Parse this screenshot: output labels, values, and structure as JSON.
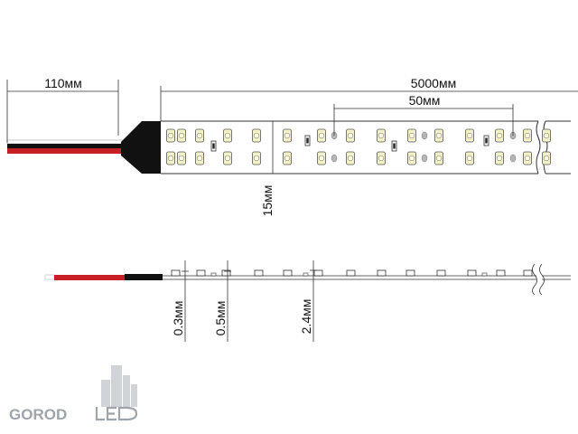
{
  "dimensions": {
    "wire_length": "110мм",
    "strip_length": "5000мм",
    "segment_length": "50мм",
    "strip_width": "15мм",
    "pcb_thickness": "0.3мм",
    "coating_thickness": "0.5мм",
    "total_thickness": "2.4мм"
  },
  "logo": {
    "text": "GOROD",
    "suffix": "LED"
  },
  "colors": {
    "wire_red": "#c62026",
    "wire_black": "#111111",
    "housing": "#111111",
    "line": "#333333",
    "led_fill": "#f3f2c8",
    "logo": "#9ea4aa"
  }
}
